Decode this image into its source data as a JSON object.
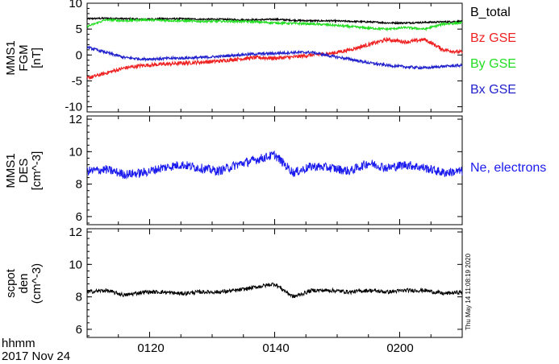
{
  "colors": {
    "b_total": "#000000",
    "bz_gse": "#ee2222",
    "by_gse": "#22dd22",
    "bx_gse": "#2222cc",
    "ne_electrons": "#1a1aee",
    "scpot_den": "#000000"
  },
  "chart_data": [
    {
      "type": "line",
      "ylabel": "MMS1\nFGM\n[nT]",
      "ylim": [
        -11,
        10
      ],
      "yticks": [
        "10",
        "5",
        "0",
        "-5",
        "-10"
      ],
      "ytick_values": [
        10,
        5,
        0,
        -5,
        -10
      ],
      "x": [
        "01:10",
        "01:13",
        "01:16",
        "01:19",
        "01:22",
        "01:25",
        "01:28",
        "01:31",
        "01:34",
        "01:37",
        "01:40",
        "01:43",
        "01:46",
        "01:49",
        "01:52",
        "01:55",
        "01:58",
        "02:01",
        "02:04",
        "02:07",
        "02:10"
      ],
      "series": [
        {
          "name": "B_total",
          "values": [
            7.0,
            7.1,
            7.0,
            6.9,
            7.0,
            7.0,
            6.9,
            6.9,
            6.8,
            6.8,
            6.9,
            6.7,
            6.6,
            6.6,
            6.5,
            6.4,
            6.2,
            6.2,
            6.3,
            6.4,
            6.5
          ]
        },
        {
          "name": "Bz GSE",
          "values": [
            -4.5,
            -3.5,
            -2.5,
            -2.0,
            -1.8,
            -1.6,
            -1.4,
            -1.2,
            -0.8,
            -0.5,
            -0.6,
            -0.4,
            0.0,
            0.3,
            1.0,
            2.0,
            3.0,
            2.5,
            3.0,
            1.0,
            0.5
          ]
        },
        {
          "name": "By GSE",
          "values": [
            5.5,
            6.8,
            6.6,
            6.8,
            6.7,
            6.6,
            6.5,
            6.5,
            6.5,
            6.4,
            6.2,
            6.1,
            6.0,
            5.8,
            5.5,
            5.2,
            5.0,
            5.3,
            5.0,
            6.0,
            6.2
          ]
        },
        {
          "name": "Bx GSE",
          "values": [
            1.5,
            0.5,
            -0.5,
            -0.8,
            -0.7,
            -0.6,
            -0.5,
            -0.3,
            0.0,
            0.2,
            0.3,
            0.5,
            0.5,
            -0.2,
            -0.8,
            -1.5,
            -2.0,
            -2.3,
            -2.5,
            -2.2,
            -2.0
          ]
        }
      ]
    },
    {
      "type": "line",
      "ylabel": "MMS1\nDES\n[cm^-3]",
      "ylim": [
        5.5,
        12.2
      ],
      "yticks": [
        "12",
        "10",
        "8",
        "6"
      ],
      "ytick_values": [
        12,
        10,
        8,
        6
      ],
      "x": [
        "01:10",
        "01:13",
        "01:16",
        "01:19",
        "01:22",
        "01:25",
        "01:28",
        "01:31",
        "01:34",
        "01:37",
        "01:40",
        "01:43",
        "01:46",
        "01:49",
        "01:52",
        "01:55",
        "01:58",
        "02:01",
        "02:04",
        "02:07",
        "02:10"
      ],
      "series": [
        {
          "name": "Ne, electrons",
          "values": [
            8.8,
            8.9,
            8.6,
            8.7,
            9.0,
            9.2,
            9.0,
            8.8,
            9.2,
            9.5,
            9.8,
            8.7,
            9.1,
            9.0,
            8.8,
            9.3,
            9.0,
            9.2,
            9.0,
            8.7,
            8.8
          ]
        }
      ]
    },
    {
      "type": "line",
      "ylabel": "scpot\nden\n(cm^-3)",
      "ylim": [
        5.5,
        12.2
      ],
      "yticks": [
        "12",
        "10",
        "8",
        "6"
      ],
      "ytick_values": [
        12,
        10,
        8,
        6
      ],
      "x": [
        "01:10",
        "01:13",
        "01:16",
        "01:19",
        "01:22",
        "01:25",
        "01:28",
        "01:31",
        "01:34",
        "01:37",
        "01:40",
        "01:43",
        "01:46",
        "01:49",
        "01:52",
        "01:55",
        "01:58",
        "02:01",
        "02:04",
        "02:07",
        "02:10"
      ],
      "series": [
        {
          "name": "scpot den",
          "values": [
            8.3,
            8.4,
            8.1,
            8.3,
            8.3,
            8.2,
            8.3,
            8.3,
            8.4,
            8.6,
            8.8,
            8.0,
            8.4,
            8.4,
            8.3,
            8.4,
            8.3,
            8.4,
            8.4,
            8.2,
            8.3
          ]
        }
      ]
    }
  ],
  "x_axis": {
    "ticks": [
      "0120",
      "0140",
      "0200"
    ],
    "label_line1": "hhmm",
    "label_line2": "2017 Nov 24"
  },
  "timestamp": "Thu May 14 11:08:19 2020"
}
